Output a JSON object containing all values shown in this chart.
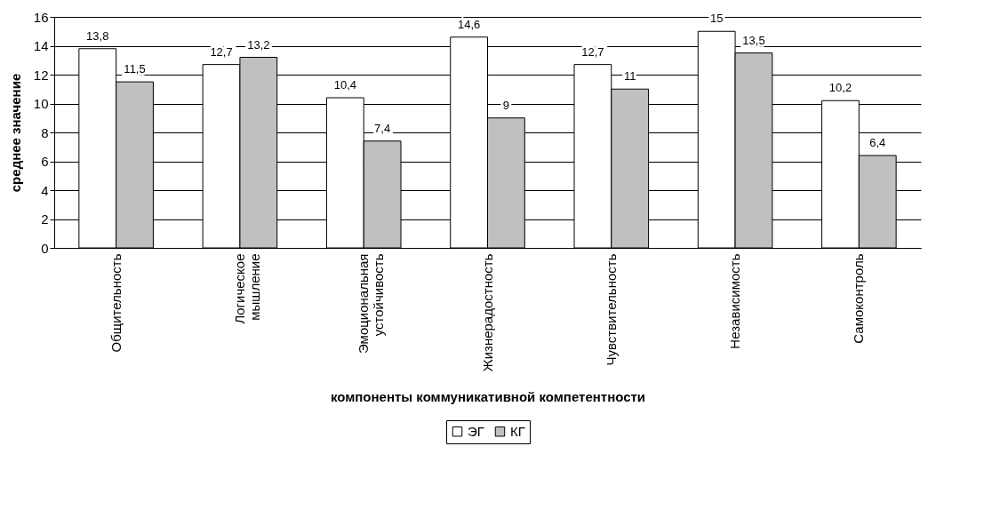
{
  "chart_data": {
    "type": "bar",
    "xlabel": "компоненты коммуникативной компетентности",
    "ylabel": "среднее значение",
    "categories": [
      "Общительность",
      "Логическое мышление",
      "Эмоциональная устойчивость",
      "Жизнерадостность",
      "Чувствительность",
      "Независимость",
      "Самоконтроль"
    ],
    "series": [
      {
        "name": "ЭГ",
        "color": "#ffffff",
        "values": [
          13.8,
          12.7,
          10.4,
          14.6,
          12.7,
          15,
          10.2
        ],
        "value_labels": [
          "13,8",
          "12,7",
          "10,4",
          "14,6",
          "12,7",
          "15",
          "10,2"
        ]
      },
      {
        "name": "КГ",
        "color": "#c0c0c0",
        "values": [
          11.5,
          13.2,
          7.4,
          9,
          11,
          13.5,
          6.4
        ],
        "value_labels": [
          "11,5",
          "13,2",
          "7,4",
          "9",
          "11",
          "13,5",
          "6,4"
        ]
      }
    ],
    "ylim": [
      0,
      16
    ],
    "yticks": [
      0,
      2,
      4,
      6,
      8,
      10,
      12,
      14,
      16
    ],
    "grid": "y",
    "legend": "bottom"
  }
}
